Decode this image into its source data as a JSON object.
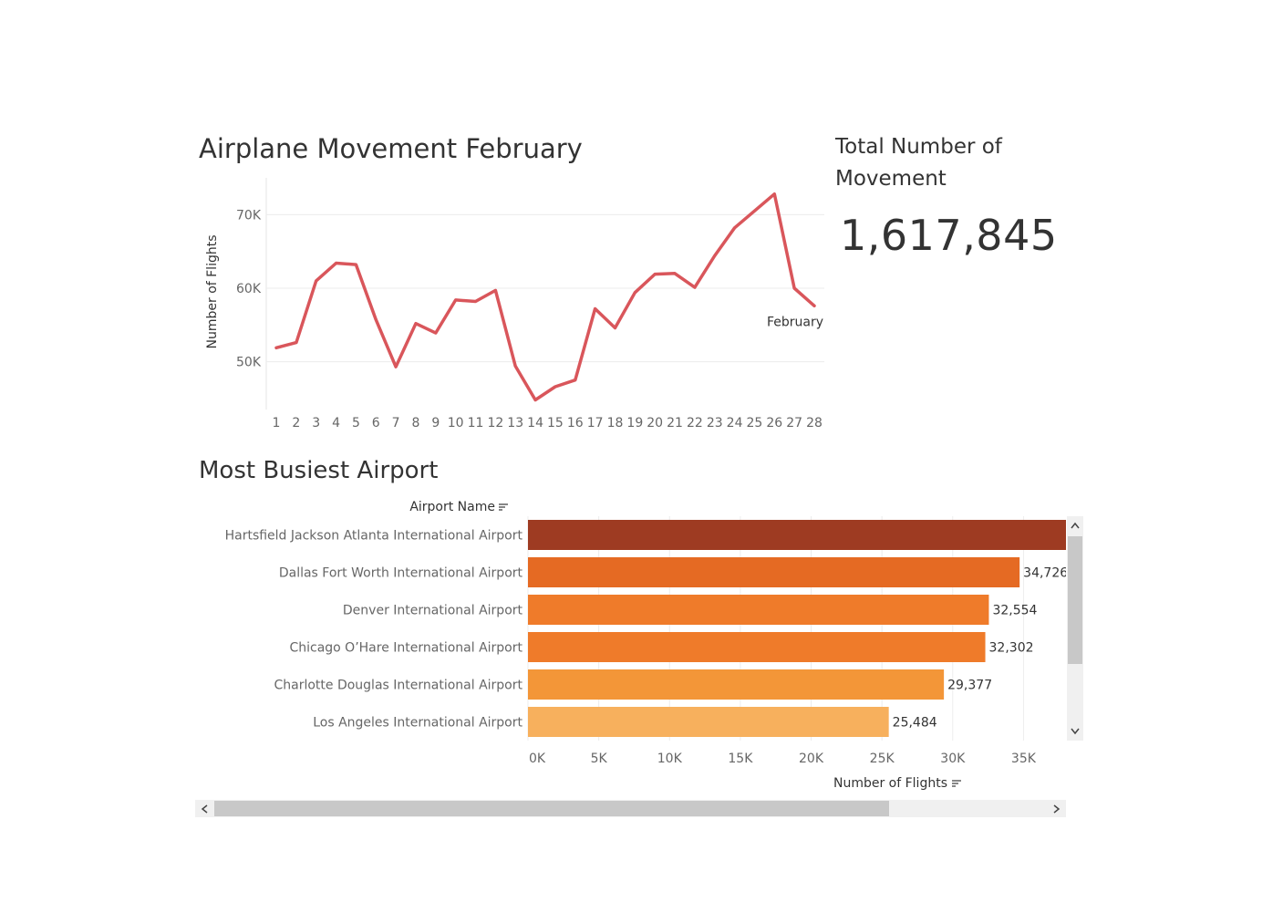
{
  "line_title": "Airplane Movement February",
  "kpi": {
    "title": "Total Number of Movement",
    "value": "1,617,845"
  },
  "bar_title": "Most Busiest Airport",
  "bar_header": "Airport Name",
  "bar_axis_title": "Number of Flights",
  "colors": {
    "line": "#d9565b",
    "grid": "#ececec",
    "scroll_thumb": "#c8c8c8",
    "scroll_track": "#f0f0f0"
  },
  "icons": {
    "sort": "sort-icon",
    "scroll_up": "chevron-up-icon",
    "scroll_down": "chevron-down-icon",
    "scroll_left": "chevron-left-icon",
    "scroll_right": "chevron-right-icon"
  },
  "chart_data": [
    {
      "type": "line",
      "title": "Airplane Movement February",
      "xlabel": "",
      "ylabel": "Number of Flights",
      "x": [
        1,
        2,
        3,
        4,
        5,
        6,
        7,
        8,
        9,
        10,
        11,
        12,
        13,
        14,
        15,
        16,
        17,
        18,
        19,
        20,
        21,
        22,
        23,
        24,
        25,
        26,
        27,
        28
      ],
      "series": [
        {
          "name": "February",
          "values": [
            51900,
            52600,
            61000,
            63400,
            63200,
            55700,
            49300,
            55200,
            53900,
            58400,
            58200,
            59700,
            49400,
            44800,
            46600,
            47500,
            57200,
            54600,
            59400,
            61900,
            62000,
            60100,
            64400,
            68200,
            70500,
            72800,
            60000,
            57600
          ]
        }
      ],
      "yticks": [
        50000,
        60000,
        70000
      ],
      "ytick_labels": [
        "50K",
        "60K",
        "70K"
      ],
      "ylim": [
        43500,
        75000
      ],
      "grid": true,
      "line_color": "#d9565b"
    },
    {
      "type": "bar",
      "orientation": "horizontal",
      "title": "Most Busiest Airport",
      "xlabel": "Number of Flights",
      "ylabel": "Airport Name",
      "categories": [
        "Hartsfield Jackson Atlanta International Airport",
        "Dallas Fort Worth International Airport",
        "Denver International Airport",
        "Chicago O’Hare International Airport",
        "Charlotte Douglas International Airport",
        "Los Angeles International Airport"
      ],
      "values": [
        38500,
        34726,
        32554,
        32302,
        29377,
        25484
      ],
      "value_labels": [
        "",
        "34,726",
        "32,554",
        "32,302",
        "29,377",
        "25,484"
      ],
      "bar_colors": [
        "#9e3b22",
        "#e56a23",
        "#ef7b2a",
        "#ef7b2a",
        "#f39638",
        "#f7b05d"
      ],
      "xticks": [
        0,
        5000,
        10000,
        15000,
        20000,
        25000,
        30000,
        35000
      ],
      "xtick_labels": [
        "0K",
        "5K",
        "10K",
        "15K",
        "20K",
        "25K",
        "30K",
        "35K"
      ],
      "xlim": [
        0,
        38000
      ],
      "grid": true
    }
  ]
}
